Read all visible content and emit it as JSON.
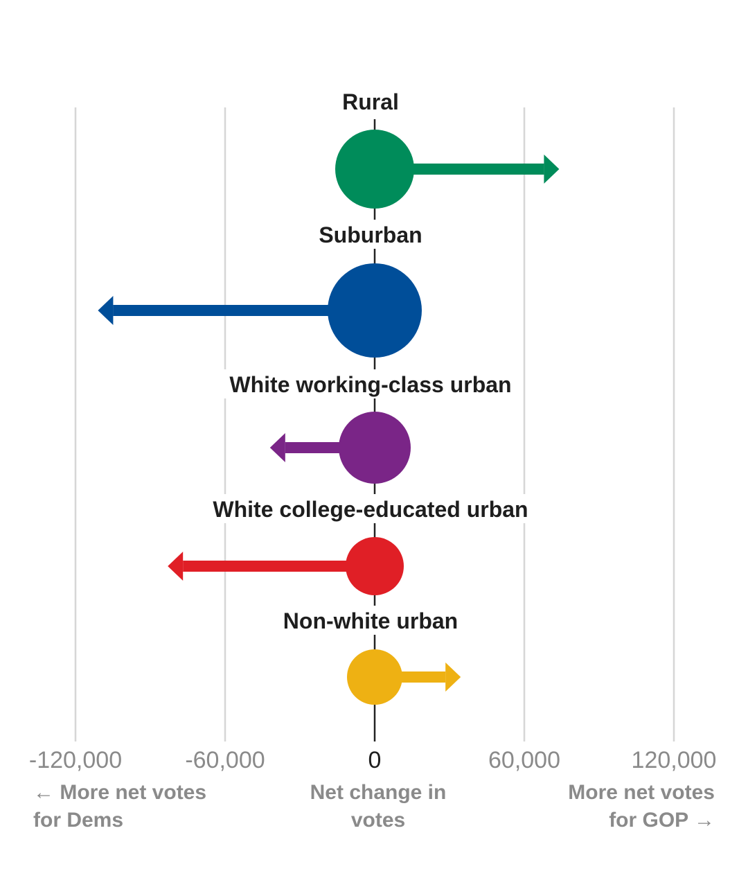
{
  "chart_data": {
    "type": "arrow-dot",
    "xlim": [
      -120000,
      120000
    ],
    "ticks": [
      -120000,
      -60000,
      0,
      60000,
      120000
    ],
    "tick_labels": [
      "-120,000",
      "-60,000",
      "0",
      "60,000",
      "120,000"
    ],
    "series": [
      {
        "name": "Rural",
        "value": 74000,
        "color": "#008c5a"
      },
      {
        "name": "Suburban",
        "value": -111000,
        "color": "#004e99"
      },
      {
        "name": "White working-class urban",
        "value": -42000,
        "color": "#7a2587"
      },
      {
        "name": "White college-educated urban",
        "value": -83000,
        "color": "#e01f26"
      },
      {
        "name": "Non-white urban",
        "value": 34500,
        "color": "#eeb113"
      }
    ],
    "notes": {
      "left": [
        "← More net votes",
        "for Dems"
      ],
      "center": [
        "Net change in",
        "votes"
      ],
      "right": [
        "More net votes",
        "for GOP →"
      ]
    }
  }
}
